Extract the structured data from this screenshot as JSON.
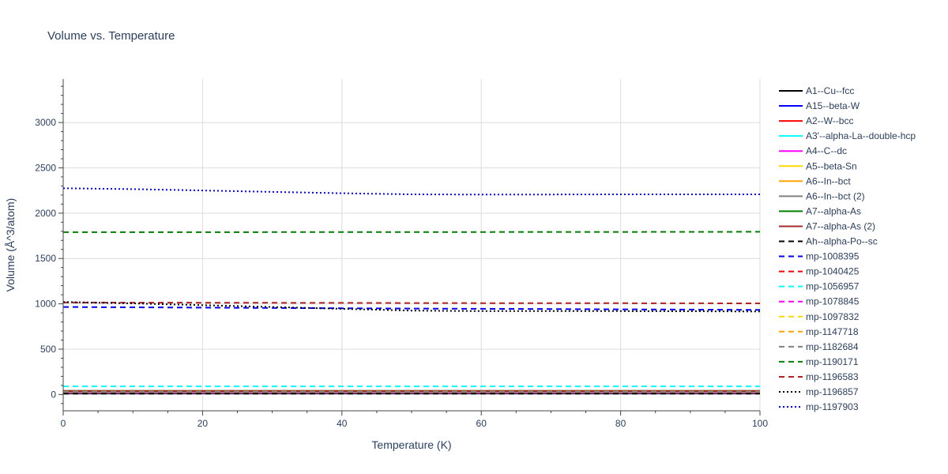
{
  "chart_data": {
    "type": "line",
    "title": "Volume vs. Temperature",
    "xlabel": "Temperature (K)",
    "ylabel": "Volume (Å^3/atom)",
    "xlim": [
      0,
      100
    ],
    "ylim": [
      -180,
      3480
    ],
    "x_ticks": [
      0,
      20,
      40,
      60,
      80,
      100
    ],
    "y_ticks": [
      0,
      500,
      1000,
      1500,
      2000,
      2500,
      3000
    ],
    "grid": true,
    "legend_position": "right",
    "x": [
      0,
      10,
      20,
      30,
      40,
      50,
      60,
      70,
      80,
      90,
      100
    ],
    "series": [
      {
        "name": "A1--Cu--fcc",
        "color": "#000000",
        "dash": "solid",
        "values": [
          12,
          12,
          12,
          12,
          12,
          12,
          12,
          12,
          12,
          12,
          12
        ]
      },
      {
        "name": "A15--beta-W",
        "color": "#0000ff",
        "dash": "solid",
        "values": [
          16,
          16,
          16,
          16,
          16,
          16,
          16,
          16,
          16,
          16,
          16
        ]
      },
      {
        "name": "A2--W--bcc",
        "color": "#ff0000",
        "dash": "solid",
        "values": [
          18,
          18,
          18,
          18,
          18,
          18,
          18,
          18,
          18,
          18,
          18
        ]
      },
      {
        "name": "A3'--alpha-La--double-hcp",
        "color": "#00ffff",
        "dash": "solid",
        "values": [
          37,
          37,
          37,
          37,
          37,
          37,
          37,
          37,
          37,
          37,
          37
        ]
      },
      {
        "name": "A4--C--dc",
        "color": "#ff00ff",
        "dash": "solid",
        "values": [
          20,
          20,
          20,
          20,
          20,
          20,
          20,
          20,
          20,
          20,
          20
        ]
      },
      {
        "name": "A5--beta-Sn",
        "color": "#ffd700",
        "dash": "solid",
        "values": [
          27,
          27,
          27,
          27,
          27,
          27,
          27,
          27,
          27,
          27,
          27
        ]
      },
      {
        "name": "A6--In--bct",
        "color": "#ffa500",
        "dash": "solid",
        "values": [
          25,
          25,
          25,
          25,
          25,
          25,
          25,
          25,
          25,
          25,
          25
        ]
      },
      {
        "name": "A6--In--bct (2)",
        "color": "#808080",
        "dash": "solid",
        "values": [
          26,
          26,
          26,
          26,
          26,
          26,
          26,
          26,
          26,
          26,
          26
        ]
      },
      {
        "name": "A7--alpha-As",
        "color": "#008000",
        "dash": "solid",
        "values": [
          40,
          40,
          40,
          40,
          40,
          40,
          40,
          40,
          40,
          40,
          40
        ]
      },
      {
        "name": "A7--alpha-As (2)",
        "color": "#a52a2a",
        "dash": "solid",
        "values": [
          39,
          39,
          39,
          39,
          39,
          39,
          39,
          39,
          39,
          39,
          39
        ]
      },
      {
        "name": "Ah--alpha-Po--sc",
        "color": "#000000",
        "dash": "dash",
        "values": [
          10,
          10,
          10,
          10,
          10,
          10,
          10,
          10,
          10,
          10,
          10
        ]
      },
      {
        "name": "mp-1008395",
        "color": "#0000ff",
        "dash": "dash",
        "values": [
          965,
          962,
          958,
          955,
          951,
          948,
          945,
          942,
          939,
          936,
          933
        ]
      },
      {
        "name": "mp-1040425",
        "color": "#ff0000",
        "dash": "dash",
        "values": [
          30,
          30,
          30,
          30,
          30,
          30,
          30,
          30,
          30,
          30,
          30
        ]
      },
      {
        "name": "mp-1056957",
        "color": "#00ffff",
        "dash": "dash",
        "values": [
          90,
          90,
          90,
          90,
          90,
          90,
          90,
          90,
          90,
          90,
          90
        ]
      },
      {
        "name": "mp-1078845",
        "color": "#ff00ff",
        "dash": "dash",
        "values": [
          28,
          28,
          28,
          28,
          28,
          28,
          28,
          28,
          28,
          28,
          28
        ]
      },
      {
        "name": "mp-1097832",
        "color": "#ffd700",
        "dash": "dash",
        "values": [
          29,
          29,
          29,
          29,
          29,
          29,
          29,
          29,
          29,
          29,
          29
        ]
      },
      {
        "name": "mp-1147718",
        "color": "#ffa500",
        "dash": "dash",
        "values": [
          31,
          31,
          31,
          31,
          31,
          31,
          31,
          31,
          31,
          31,
          31
        ]
      },
      {
        "name": "mp-1182684",
        "color": "#808080",
        "dash": "dash",
        "values": [
          32,
          32,
          32,
          32,
          32,
          32,
          32,
          32,
          32,
          32,
          32
        ]
      },
      {
        "name": "mp-1190171",
        "color": "#008000",
        "dash": "dash",
        "values": [
          1790,
          1790,
          1790,
          1791,
          1791,
          1792,
          1792,
          1793,
          1793,
          1794,
          1795
        ]
      },
      {
        "name": "mp-1196583",
        "color": "#b22222",
        "dash": "dash",
        "values": [
          1015,
          1013,
          1012,
          1011,
          1010,
          1009,
          1008,
          1008,
          1007,
          1006,
          1005
        ]
      },
      {
        "name": "mp-1196857",
        "color": "#000000",
        "dash": "dot",
        "values": [
          1020,
          1005,
          985,
          965,
          945,
          925,
          920,
          920,
          920,
          918,
          915
        ]
      },
      {
        "name": "mp-1197903",
        "color": "#0000ff",
        "dash": "dot",
        "values": [
          2275,
          2265,
          2250,
          2235,
          2220,
          2208,
          2205,
          2206,
          2208,
          2208,
          2208
        ]
      }
    ]
  }
}
